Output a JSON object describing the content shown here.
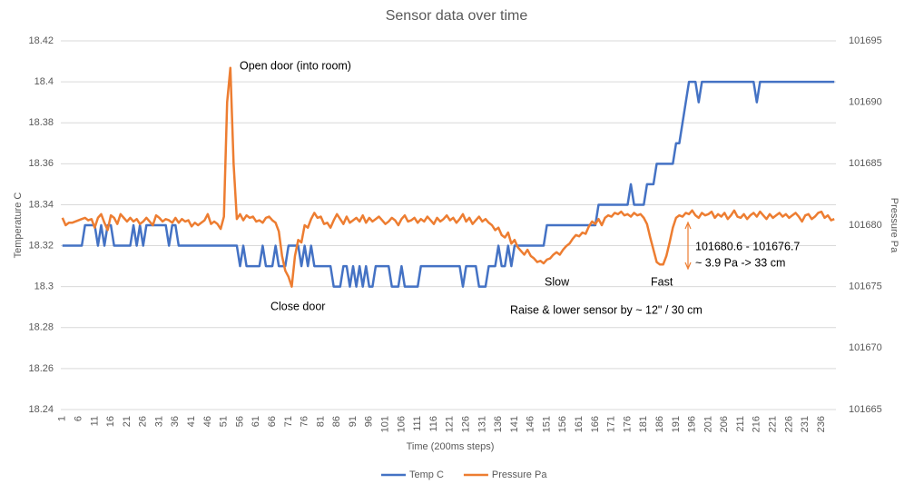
{
  "chart_data": {
    "type": "line",
    "title": "Sensor data over time",
    "x_label": "Time (200ms steps)",
    "y_label": "Temperature C",
    "y2_label": "Pressure Pa",
    "categories": [
      "1",
      null,
      null,
      null,
      null,
      "6",
      null,
      null,
      null,
      null,
      "11",
      null,
      null,
      null,
      null,
      "16",
      null,
      null,
      null,
      null,
      "21",
      null,
      null,
      null,
      null,
      "26",
      null,
      null,
      null,
      null,
      "31",
      null,
      null,
      null,
      null,
      "36",
      null,
      null,
      null,
      null,
      "41",
      null,
      null,
      null,
      null,
      "46",
      null,
      null,
      null,
      null,
      "51",
      null,
      null,
      null,
      null,
      "56",
      null,
      null,
      null,
      null,
      "61",
      null,
      null,
      null,
      null,
      "66",
      null,
      null,
      null,
      null,
      "71",
      null,
      null,
      null,
      null,
      "76",
      null,
      null,
      null,
      null,
      "81",
      null,
      null,
      null,
      null,
      "86",
      null,
      null,
      null,
      null,
      "91",
      null,
      null,
      null,
      null,
      "96",
      null,
      null,
      null,
      null,
      "101",
      null,
      null,
      null,
      null,
      "106",
      null,
      null,
      null,
      null,
      "111",
      null,
      null,
      null,
      null,
      "116",
      null,
      null,
      null,
      null,
      "121",
      null,
      null,
      null,
      null,
      "126",
      null,
      null,
      null,
      null,
      "131",
      null,
      null,
      null,
      null,
      "136",
      null,
      null,
      null,
      null,
      "141",
      null,
      null,
      null,
      null,
      "146",
      null,
      null,
      null,
      null,
      "151",
      null,
      null,
      null,
      null,
      "156",
      null,
      null,
      null,
      null,
      "161",
      null,
      null,
      null,
      null,
      "166",
      null,
      null,
      null,
      null,
      "171",
      null,
      null,
      null,
      null,
      "176",
      null,
      null,
      null,
      null,
      "181",
      null,
      null,
      null,
      null,
      "186",
      null,
      null,
      null,
      null,
      "191",
      null,
      null,
      null,
      null,
      "196",
      null,
      null,
      null,
      null,
      "201",
      null,
      null,
      null,
      null,
      "206",
      null,
      null,
      null,
      null,
      "211",
      null,
      null,
      null,
      null,
      "216",
      null,
      null,
      null,
      null,
      "221",
      null,
      null,
      null,
      null,
      "226",
      null,
      null,
      null,
      null,
      "231",
      null,
      null,
      null,
      null,
      "236",
      null,
      null,
      null,
      null
    ],
    "series": [
      {
        "name": "Temp C",
        "color": "#4472c4",
        "axis": "y",
        "values": [
          18.32,
          18.32,
          18.32,
          18.32,
          18.32,
          18.32,
          18.32,
          18.33,
          18.33,
          18.33,
          18.33,
          18.32,
          18.33,
          18.32,
          18.33,
          18.33,
          18.32,
          18.32,
          18.32,
          18.32,
          18.32,
          18.32,
          18.33,
          18.32,
          18.33,
          18.32,
          18.33,
          18.33,
          18.33,
          18.33,
          18.33,
          18.33,
          18.33,
          18.32,
          18.33,
          18.33,
          18.32,
          18.32,
          18.32,
          18.32,
          18.32,
          18.32,
          18.32,
          18.32,
          18.32,
          18.32,
          18.32,
          18.32,
          18.32,
          18.32,
          18.32,
          18.32,
          18.32,
          18.32,
          18.32,
          18.31,
          18.32,
          18.31,
          18.31,
          18.31,
          18.31,
          18.31,
          18.32,
          18.31,
          18.31,
          18.31,
          18.32,
          18.31,
          18.31,
          18.31,
          18.32,
          18.32,
          18.32,
          18.32,
          18.31,
          18.32,
          18.31,
          18.32,
          18.31,
          18.31,
          18.31,
          18.31,
          18.31,
          18.31,
          18.3,
          18.3,
          18.3,
          18.31,
          18.31,
          18.3,
          18.31,
          18.3,
          18.31,
          18.3,
          18.31,
          18.3,
          18.3,
          18.31,
          18.31,
          18.31,
          18.31,
          18.31,
          18.3,
          18.3,
          18.3,
          18.31,
          18.3,
          18.3,
          18.3,
          18.3,
          18.3,
          18.31,
          18.31,
          18.31,
          18.31,
          18.31,
          18.31,
          18.31,
          18.31,
          18.31,
          18.31,
          18.31,
          18.31,
          18.31,
          18.3,
          18.31,
          18.31,
          18.31,
          18.31,
          18.3,
          18.3,
          18.3,
          18.31,
          18.31,
          18.31,
          18.32,
          18.31,
          18.31,
          18.32,
          18.31,
          18.32,
          18.32,
          18.32,
          18.32,
          18.32,
          18.32,
          18.32,
          18.32,
          18.32,
          18.32,
          18.33,
          18.33,
          18.33,
          18.33,
          18.33,
          18.33,
          18.33,
          18.33,
          18.33,
          18.33,
          18.33,
          18.33,
          18.33,
          18.33,
          18.33,
          18.33,
          18.34,
          18.34,
          18.34,
          18.34,
          18.34,
          18.34,
          18.34,
          18.34,
          18.34,
          18.34,
          18.35,
          18.34,
          18.34,
          18.34,
          18.34,
          18.35,
          18.35,
          18.35,
          18.36,
          18.36,
          18.36,
          18.36,
          18.36,
          18.36,
          18.37,
          18.37,
          18.38,
          18.39,
          18.4,
          18.4,
          18.4,
          18.39,
          18.4,
          18.4,
          18.4,
          18.4,
          18.4,
          18.4,
          18.4,
          18.4,
          18.4,
          18.4,
          18.4,
          18.4,
          18.4,
          18.4,
          18.4,
          18.4,
          18.4,
          18.39,
          18.4,
          18.4,
          18.4,
          18.4,
          18.4,
          18.4,
          18.4,
          18.4,
          18.4,
          18.4,
          18.4,
          18.4,
          18.4,
          18.4,
          18.4,
          18.4,
          18.4,
          18.4,
          18.4,
          18.4,
          18.4,
          18.4,
          18.4,
          18.4
        ]
      },
      {
        "name": "Pressure Pa",
        "color": "#ed7d31",
        "axis": "y2",
        "values": [
          101680.6,
          101680.0,
          101680.2,
          101680.2,
          101680.3,
          101680.4,
          101680.5,
          101680.6,
          101680.4,
          101680.5,
          101679.8,
          101680.6,
          101680.9,
          101680.2,
          101679.6,
          101680.8,
          101680.6,
          101680.1,
          101680.9,
          101680.6,
          101680.3,
          101680.6,
          101680.3,
          101680.5,
          101680.1,
          101680.3,
          101680.6,
          101680.3,
          101680.0,
          101680.8,
          101680.6,
          101680.3,
          101680.5,
          101680.4,
          101680.2,
          101680.6,
          101680.2,
          101680.5,
          101680.3,
          101680.4,
          101679.9,
          101680.2,
          101680.0,
          101680.2,
          101680.4,
          101680.9,
          101680.1,
          101680.3,
          101680.1,
          101679.7,
          101680.7,
          101690.0,
          101692.8,
          101685.0,
          101680.5,
          101680.9,
          101680.4,
          101680.8,
          101680.6,
          101680.7,
          101680.3,
          101680.4,
          101680.2,
          101680.6,
          101680.7,
          101680.4,
          101680.2,
          101679.5,
          101677.5,
          101676.3,
          101675.8,
          101675.0,
          101677.5,
          101678.8,
          101678.6,
          101680.0,
          101679.8,
          101680.5,
          101681.0,
          101680.6,
          101680.7,
          101680.1,
          101680.2,
          101679.8,
          101680.4,
          101680.9,
          101680.5,
          101680.1,
          101680.7,
          101680.2,
          101680.4,
          101680.6,
          101680.3,
          101680.8,
          101680.2,
          101680.6,
          101680.3,
          101680.5,
          101680.7,
          101680.4,
          101680.1,
          101680.3,
          101680.6,
          101680.4,
          101680.0,
          101680.5,
          101680.8,
          101680.3,
          101680.4,
          101680.6,
          101680.2,
          101680.5,
          101680.3,
          101680.7,
          101680.4,
          101680.1,
          101680.6,
          101680.3,
          101680.5,
          101680.8,
          101680.4,
          101680.6,
          101680.2,
          101680.5,
          101680.9,
          101680.3,
          101680.6,
          101680.1,
          101680.4,
          101680.7,
          101680.3,
          101680.5,
          101680.2,
          101680.0,
          101679.6,
          101679.8,
          101679.2,
          101679.0,
          101679.4,
          101678.5,
          101678.8,
          101678.2,
          101677.9,
          101677.6,
          101678.0,
          101677.5,
          101677.3,
          101677.0,
          101677.1,
          101676.9,
          101677.2,
          101677.3,
          101677.6,
          101677.8,
          101677.6,
          101678.0,
          101678.3,
          101678.5,
          101678.9,
          101679.2,
          101679.1,
          101679.4,
          101679.3,
          101679.9,
          101680.3,
          101680.1,
          101680.5,
          101680.0,
          101680.6,
          101680.8,
          101680.7,
          101681.0,
          101680.9,
          101681.1,
          101680.8,
          101680.9,
          101680.7,
          101681.0,
          101680.8,
          101680.9,
          101680.6,
          101680.1,
          101679.0,
          101678.0,
          101677.0,
          101676.8,
          101676.8,
          101677.5,
          101678.6,
          101679.8,
          101680.6,
          101680.8,
          101680.7,
          101681.0,
          101680.9,
          101681.2,
          101680.8,
          101680.6,
          101681.0,
          101680.8,
          101680.9,
          101681.1,
          101680.6,
          101680.9,
          101680.7,
          101681.0,
          101680.5,
          101680.8,
          101681.2,
          101680.7,
          101680.6,
          101680.9,
          101680.5,
          101680.8,
          101681.0,
          101680.7,
          101681.1,
          101680.8,
          101680.5,
          101680.9,
          101680.6,
          101680.8,
          101681.0,
          101680.7,
          101680.9,
          101680.6,
          101680.8,
          101681.0,
          101680.7,
          101680.3,
          101680.8,
          101680.9,
          101680.5,
          101680.7,
          101681.0,
          101681.1,
          101680.6,
          101680.8,
          101680.4,
          101680.5
        ]
      }
    ],
    "ylim": [
      18.24,
      18.42
    ],
    "yticks": [
      18.24,
      18.26,
      18.28,
      18.3,
      18.32,
      18.34,
      18.36,
      18.38,
      18.4,
      18.42
    ],
    "y2lim": [
      101665,
      101695
    ],
    "y2ticks": [
      101665,
      101670,
      101675,
      101680,
      101685,
      101690,
      101695
    ],
    "grid": true,
    "legend": "bottom",
    "annotations": [
      "Open door (into room)",
      "Close door",
      "Slow",
      "Fast",
      "Raise & lower sensor by ~ 12\" / 30 cm",
      "101680.6 - 101676.7",
      "~ 3.9 Pa -> 33 cm"
    ]
  }
}
